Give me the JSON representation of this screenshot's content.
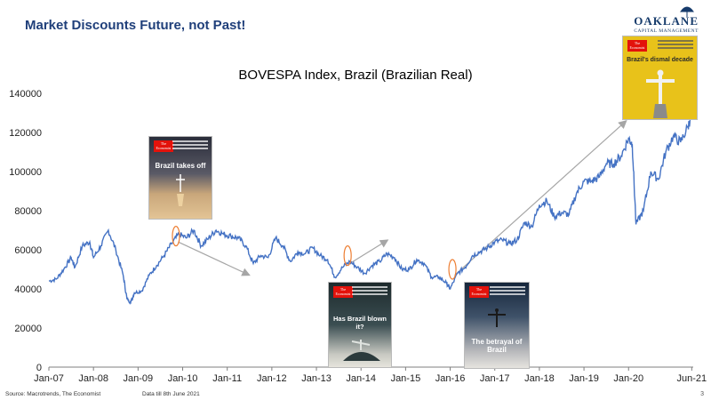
{
  "slide": {
    "title": "Market Discounts Future, not Past!",
    "brand_name": "OAKLANE",
    "brand_sub": "CAPITAL MANAGEMENT",
    "source": "Source: Macrotrends, The Economist",
    "note": "Data till 8th June 2021",
    "page_number": "3"
  },
  "covers": [
    {
      "masthead": "The Economist",
      "headline": "Brazil takes off"
    },
    {
      "masthead": "The Economist",
      "headline": "Has Brazil blown it?"
    },
    {
      "masthead": "The Economist",
      "headline": "The betrayal of Brazil"
    },
    {
      "masthead": "The Economist",
      "headline": "Brazil's dismal decade"
    }
  ],
  "colors": {
    "line": "#4472c4",
    "highlight": "#ed7d31",
    "arrow": "#a6a6a6",
    "title": "#1f3f7a"
  },
  "chart_data": {
    "type": "line",
    "title": "BOVESPA Index, Brazil (Brazilian Real)",
    "xlabel": "",
    "ylabel": "",
    "ylim": [
      0,
      140000
    ],
    "yticks": [
      0,
      20000,
      40000,
      60000,
      80000,
      100000,
      120000,
      140000
    ],
    "xtick_labels": [
      "Jan-07",
      "Jan-08",
      "Jan-09",
      "Jan-10",
      "Jan-11",
      "Jan-12",
      "Jan-13",
      "Jan-14",
      "Jan-15",
      "Jan-16",
      "Jan-17",
      "Jan-18",
      "Jan-19",
      "Jan-20",
      "Jun-21"
    ],
    "grid": false,
    "legend": "none",
    "series": [
      {
        "x": [
          "2007-01",
          "2007-03",
          "2007-05",
          "2007-07",
          "2007-08",
          "2007-10",
          "2007-12",
          "2008-01",
          "2008-03",
          "2008-05",
          "2008-07",
          "2008-09",
          "2008-10",
          "2008-11",
          "2008-12",
          "2009-02",
          "2009-04",
          "2009-06",
          "2009-08",
          "2009-10",
          "2009-12",
          "2010-02",
          "2010-04",
          "2010-06",
          "2010-08",
          "2010-10",
          "2010-12",
          "2011-02",
          "2011-04",
          "2011-06",
          "2011-08",
          "2011-10",
          "2011-12",
          "2012-02",
          "2012-04",
          "2012-06",
          "2012-08",
          "2012-10",
          "2012-12",
          "2013-02",
          "2013-04",
          "2013-06",
          "2013-08",
          "2013-10",
          "2013-12",
          "2014-02",
          "2014-04",
          "2014-06",
          "2014-08",
          "2014-10",
          "2014-12",
          "2015-02",
          "2015-04",
          "2015-06",
          "2015-08",
          "2015-10",
          "2015-12",
          "2016-01",
          "2016-03",
          "2016-05",
          "2016-07",
          "2016-09",
          "2016-11",
          "2017-01",
          "2017-03",
          "2017-05",
          "2017-07",
          "2017-09",
          "2017-11",
          "2018-01",
          "2018-03",
          "2018-05",
          "2018-07",
          "2018-09",
          "2018-11",
          "2019-01",
          "2019-03",
          "2019-05",
          "2019-07",
          "2019-09",
          "2019-11",
          "2020-01",
          "2020-02",
          "2020-03",
          "2020-05",
          "2020-07",
          "2020-09",
          "2020-11",
          "2021-01",
          "2021-03",
          "2021-05",
          "2021-06"
        ],
        "y": [
          44000,
          45000,
          50000,
          56000,
          51000,
          62000,
          64000,
          56000,
          62000,
          70000,
          60000,
          47000,
          35000,
          33000,
          38000,
          39000,
          47000,
          52000,
          57000,
          63000,
          68000,
          66000,
          70000,
          62000,
          66000,
          70000,
          68000,
          67000,
          66000,
          62000,
          53000,
          57000,
          56000,
          66000,
          62000,
          54000,
          59000,
          58000,
          61000,
          57000,
          55000,
          46000,
          51000,
          54000,
          51000,
          48000,
          52000,
          54000,
          58000,
          56000,
          50000,
          50000,
          55000,
          53000,
          46000,
          46000,
          43000,
          40000,
          48000,
          51000,
          57000,
          59000,
          61000,
          64000,
          65000,
          63000,
          65000,
          74000,
          72000,
          83000,
          85000,
          77000,
          79000,
          78000,
          89000,
          95000,
          95000,
          97000,
          104000,
          104000,
          108000,
          117000,
          114000,
          73000,
          80000,
          100000,
          96000,
          110000,
          118000,
          115000,
          123000,
          130000
        ]
      }
    ],
    "annotations": [
      "Brazil takes off",
      "Has Brazil blown it?",
      "The betrayal of Brazil",
      "Brazil's dismal decade"
    ]
  }
}
